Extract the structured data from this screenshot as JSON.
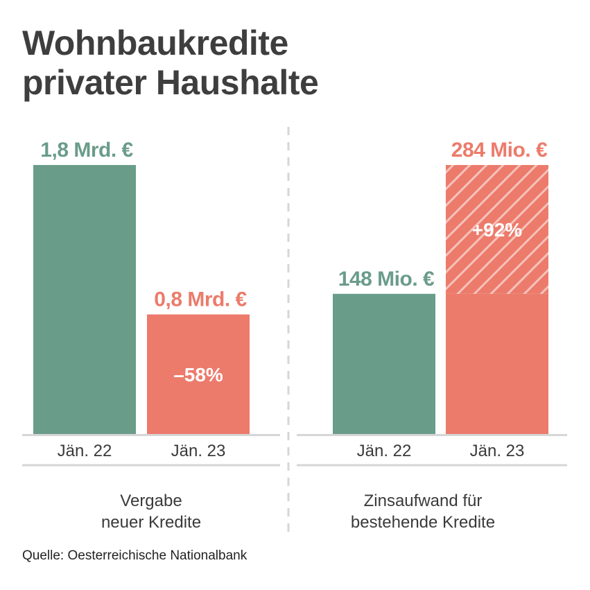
{
  "title": {
    "line1": "Wohnbaukredite",
    "line2": "privater Haushalte"
  },
  "source": "Quelle: Oesterreichische Nationalbank",
  "colors": {
    "green": "#6a9c8a",
    "red": "#ec7b6b",
    "text": "#3e3e3e",
    "axis": "#d6d6d6"
  },
  "chart_data": [
    {
      "type": "bar",
      "group_label": [
        "Vergabe",
        "neuer Kredite"
      ],
      "categories": [
        "Jän. 22",
        "Jän. 23"
      ],
      "values": [
        1.8,
        0.8
      ],
      "unit": "Mrd. €",
      "value_labels": [
        "1,8 Mrd. €",
        "0,8 Mrd. €"
      ],
      "change_label": "–58%",
      "ylim": [
        0,
        1.8
      ],
      "bar_colors": [
        "green",
        "red"
      ]
    },
    {
      "type": "bar",
      "group_label": [
        "Zinsaufwand für",
        "bestehende Kredite"
      ],
      "categories": [
        "Jän. 22",
        "Jän. 23"
      ],
      "values": [
        148,
        284
      ],
      "unit": "Mio. €",
      "value_labels": [
        "148 Mio. €",
        "284 Mio. €"
      ],
      "change_label": "+92%",
      "ylim": [
        0,
        284
      ],
      "increase_hatched": true,
      "bar_colors": [
        "green",
        "red"
      ]
    }
  ]
}
